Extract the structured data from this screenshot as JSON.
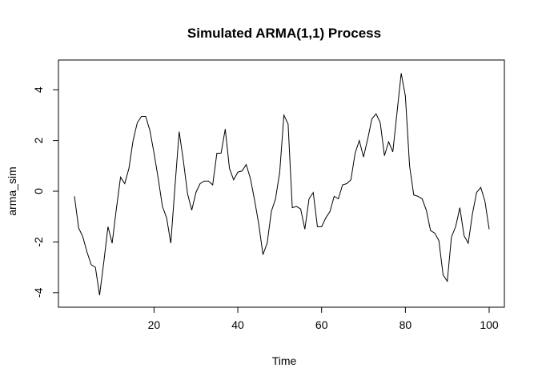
{
  "chart_data": {
    "type": "line",
    "title": "Simulated ARMA(1,1) Process",
    "xlabel": "Time",
    "ylabel": "arma_sim",
    "xlim": [
      1,
      100
    ],
    "ylim": [
      -4.1,
      4.7
    ],
    "x_ticks": [
      20,
      40,
      60,
      80,
      100
    ],
    "x_tick_labels": [
      "20",
      "40",
      "60",
      "80",
      "100"
    ],
    "y_ticks": [
      -4,
      -2,
      0,
      2,
      4
    ],
    "y_tick_labels": [
      "-4",
      "-2",
      "0",
      "2",
      "4"
    ],
    "grid": false,
    "line_color": "#000000",
    "series": [
      {
        "x": [
          1,
          2,
          3,
          4,
          5,
          6,
          7,
          8,
          9,
          10,
          11,
          12,
          13,
          14,
          15,
          16,
          17,
          18,
          19,
          20,
          21,
          22,
          23,
          24,
          25,
          26,
          27,
          28,
          29,
          30,
          31,
          32,
          33,
          34,
          35,
          36,
          37,
          38,
          39,
          40,
          41,
          42,
          43,
          44,
          45,
          46,
          47,
          48,
          49,
          50,
          51,
          52,
          53,
          54,
          55,
          56,
          57,
          58,
          59,
          60,
          61,
          62,
          63,
          64,
          65,
          66,
          67,
          68,
          69,
          70,
          71,
          72,
          73,
          74,
          75,
          76,
          77,
          78,
          79,
          80,
          81,
          82,
          83,
          84,
          85,
          86,
          87,
          88,
          89,
          90,
          91,
          92,
          93,
          94,
          95,
          96,
          97,
          98,
          99,
          100
        ],
        "values": [
          -0.2,
          -1.45,
          -1.8,
          -2.4,
          -2.9,
          -3.0,
          -4.1,
          -2.8,
          -1.4,
          -2.05,
          -0.7,
          0.55,
          0.3,
          0.9,
          2.0,
          2.7,
          2.95,
          2.95,
          2.4,
          1.5,
          0.5,
          -0.6,
          -1.05,
          -2.05,
          0.2,
          2.35,
          1.2,
          -0.1,
          -0.75,
          -0.05,
          0.3,
          0.4,
          0.4,
          0.25,
          1.5,
          1.5,
          2.45,
          0.9,
          0.45,
          0.75,
          0.8,
          1.05,
          0.5,
          -0.35,
          -1.3,
          -2.5,
          -2.05,
          -0.8,
          -0.3,
          0.75,
          3.0,
          2.65,
          -0.65,
          -0.6,
          -0.7,
          -1.5,
          -0.3,
          -0.05,
          -1.4,
          -1.4,
          -1.05,
          -0.8,
          -0.2,
          -0.3,
          0.25,
          0.3,
          0.45,
          1.5,
          2.0,
          1.35,
          2.05,
          2.85,
          3.05,
          2.7,
          1.4,
          1.95,
          1.55,
          3.1,
          4.65,
          3.75,
          1.0,
          -0.15,
          -0.2,
          -0.3,
          -0.75,
          -1.55,
          -1.65,
          -1.95,
          -3.3,
          -3.55,
          -1.8,
          -1.4,
          -0.65,
          -1.75,
          -2.05,
          -0.9,
          -0.05,
          0.15,
          -0.4,
          -1.5
        ]
      }
    ]
  }
}
